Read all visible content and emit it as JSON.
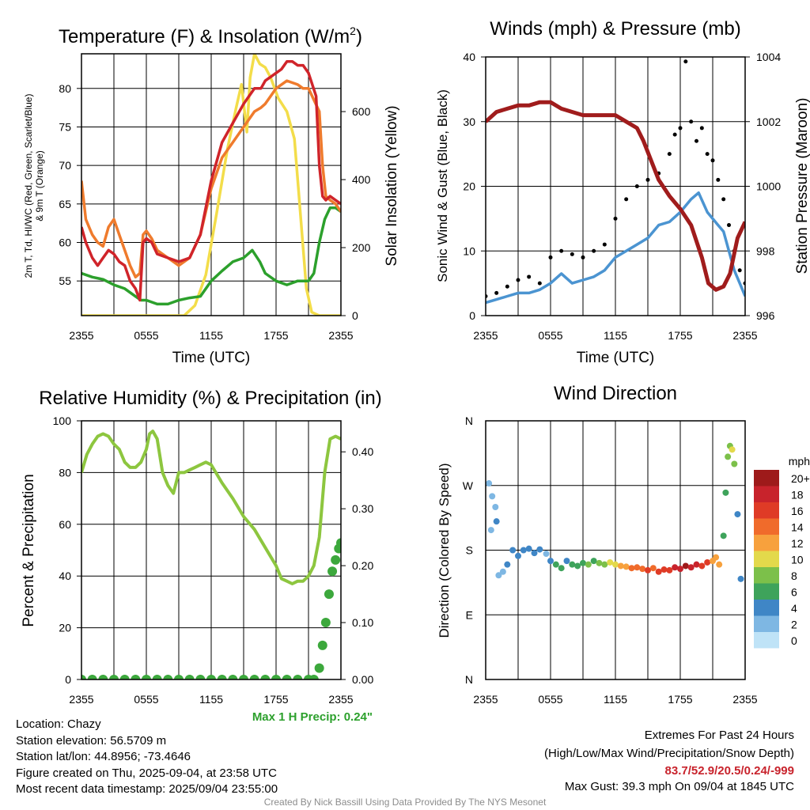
{
  "chart_data": [
    {
      "type": "line",
      "title": "Temperature (F) & Insolation (W/m2)",
      "title_parts": [
        "Temperature (F) & Insolation (W/m",
        "2",
        ")"
      ],
      "xlabel": "Time (UTC)",
      "ylabel_lines": [
        "2m T, Td, HI/WC (Red, Green, Scarlet/Blue)",
        "& 9m T (Orange)"
      ],
      "ylabel_right": "Solar Insolation (Yellow)",
      "x_ticks": [
        "2355",
        "0555",
        "1155",
        "1755",
        "2355"
      ],
      "y_ticks": [
        55,
        60,
        65,
        70,
        75,
        80
      ],
      "ylim": [
        50.5,
        84.5
      ],
      "y2_ticks": [
        0,
        200,
        400,
        600
      ],
      "y2lim": [
        0,
        770
      ],
      "xlim": [
        0,
        24
      ],
      "grid": true,
      "series": [
        {
          "color": "#f3dd4a",
          "axis": "right",
          "x": [
            0,
            9.5,
            10.5,
            11.5,
            12.5,
            13.5,
            14.3,
            14.8,
            15.3,
            15.6,
            16.0,
            16.5,
            17.0,
            17.5,
            18.2,
            19.0,
            19.7,
            20.1,
            20.4,
            20.8,
            21.3,
            22,
            24
          ],
          "y": [
            0,
            0,
            30,
            120,
            300,
            490,
            610,
            680,
            540,
            700,
            770,
            740,
            730,
            700,
            640,
            600,
            520,
            360,
            240,
            80,
            10,
            0,
            0
          ]
        },
        {
          "color": "#2ca02c",
          "x": [
            0,
            1,
            2,
            3,
            4,
            5,
            5.5,
            6,
            7,
            8,
            9,
            10,
            11,
            12,
            13,
            14,
            15,
            15.8,
            16.5,
            17,
            18,
            19,
            20,
            21,
            21.5,
            22,
            22.5,
            23,
            23.5,
            24
          ],
          "y": [
            56,
            55.5,
            55.2,
            54.5,
            54,
            53,
            52.5,
            52.5,
            52,
            52,
            52.5,
            52.8,
            53,
            55,
            56.3,
            57.5,
            58,
            59,
            57.5,
            56,
            55,
            54.5,
            55,
            55,
            56,
            60,
            63,
            64.5,
            64.5,
            64
          ]
        },
        {
          "color": "#ef7b2d",
          "x": [
            0,
            0.4,
            1,
            1.5,
            2,
            2.5,
            3,
            3.5,
            4,
            4.5,
            5,
            5.4,
            5.7,
            6.0,
            6.5,
            7,
            8,
            9,
            10,
            11,
            12,
            13,
            14,
            15,
            16,
            16.6,
            17,
            17.5,
            18,
            19,
            20,
            20.5,
            21,
            22,
            22.3,
            22.6,
            23,
            23.5,
            24
          ],
          "y": [
            68,
            63,
            61,
            60,
            59.5,
            62,
            63,
            61,
            59,
            57,
            55.5,
            56,
            61,
            61.5,
            60.5,
            59,
            58,
            57,
            58,
            61,
            67,
            71,
            73,
            75,
            77,
            77.5,
            78,
            79,
            80,
            81,
            80.5,
            80,
            80,
            77,
            70,
            66,
            65.5,
            65,
            64
          ]
        },
        {
          "color": "#d0242a",
          "x": [
            0,
            0.4,
            1,
            1.5,
            2,
            2.5,
            3,
            3.5,
            4,
            4.5,
            5,
            5.4,
            5.7,
            6.0,
            6.5,
            7,
            8,
            9,
            10,
            11,
            12,
            13,
            14,
            15,
            16,
            16.6,
            17,
            17.5,
            18,
            18.5,
            19,
            19.5,
            20,
            20.5,
            21,
            21.7,
            22,
            22.3,
            22.6,
            23,
            23.5,
            24
          ],
          "y": [
            62,
            60,
            58,
            57,
            58,
            59,
            58.5,
            57.5,
            57,
            55,
            54,
            52.5,
            60,
            60.5,
            60,
            58.5,
            58,
            57.5,
            58,
            61,
            68,
            73,
            75.5,
            78,
            80,
            80,
            81,
            81.5,
            82,
            82.5,
            83.5,
            83.5,
            83,
            83,
            82,
            79,
            70,
            66,
            65.5,
            66,
            65.5,
            65
          ]
        }
      ]
    },
    {
      "type": "line",
      "title": "Winds (mph) & Pressure (mb)",
      "xlabel": "Time (UTC)",
      "ylabel": "Sonic Wind & Gust (Blue, Black)",
      "ylabel_right": "Station Pressure (Maroon)",
      "x_ticks": [
        "2355",
        "0555",
        "1155",
        "1755",
        "2355"
      ],
      "y_ticks": [
        0,
        10,
        20,
        30,
        40
      ],
      "ylim": [
        0,
        40
      ],
      "y2_ticks": [
        996,
        998,
        1000,
        1002,
        1004
      ],
      "y2lim": [
        996,
        1004
      ],
      "xlim": [
        0,
        24
      ],
      "grid": true,
      "series": [
        {
          "name": "wind",
          "color": "#4b94d1",
          "x": [
            0,
            1,
            2,
            3,
            4,
            5,
            6,
            7,
            8,
            9,
            10,
            11,
            12,
            13,
            14,
            15,
            16,
            17,
            18,
            19,
            19.7,
            20.5,
            21.5,
            22,
            22.5,
            23,
            23.5,
            24
          ],
          "y": [
            2,
            2.5,
            3,
            3.5,
            3.5,
            4,
            5,
            6.5,
            5,
            5.5,
            6,
            7,
            9,
            10,
            11,
            12,
            14,
            14.5,
            16,
            18,
            19,
            16,
            14,
            13,
            10,
            7,
            5,
            3
          ]
        },
        {
          "name": "gust",
          "color": "#000000",
          "markers": "dots",
          "x": [
            0,
            1,
            2,
            3,
            4,
            5,
            6,
            7,
            8,
            9,
            10,
            11,
            12,
            13,
            14,
            15,
            16,
            17,
            17.5,
            18,
            18.5,
            19,
            19.5,
            20,
            20.5,
            21,
            21.5,
            22,
            22.5,
            23,
            23.5,
            24
          ],
          "y": [
            3,
            3.5,
            4.5,
            5.5,
            6,
            5,
            9,
            10,
            9.5,
            9,
            10,
            11,
            15,
            18,
            20,
            21,
            22,
            25,
            28,
            29,
            39.3,
            30,
            27,
            29,
            25,
            24,
            21,
            18,
            14,
            10,
            7,
            5
          ]
        },
        {
          "name": "pressure",
          "color": "#a01c1c",
          "axis": "right",
          "x": [
            0,
            1,
            2,
            3,
            4,
            5,
            6,
            7,
            8,
            9,
            10,
            11,
            12,
            13,
            14,
            14.6,
            15.3,
            16,
            17,
            18,
            19,
            20,
            20.6,
            21.3,
            22,
            22.6,
            23.3,
            24
          ],
          "y": [
            1002.0,
            1002.3,
            1002.4,
            1002.5,
            1002.5,
            1002.6,
            1002.6,
            1002.4,
            1002.3,
            1002.2,
            1002.2,
            1002.2,
            1002.2,
            1002.0,
            1001.8,
            1001.4,
            1000.8,
            1000.2,
            999.7,
            999.3,
            998.8,
            997.8,
            997.0,
            996.8,
            996.9,
            997.3,
            998.4,
            998.9
          ]
        }
      ]
    },
    {
      "type": "line",
      "title": "Relative Humidity (%) & Precipitation (in)",
      "xlabel": "",
      "ylabel": "Percent & Precipitation",
      "x_ticks": [
        "2355",
        "0555",
        "1155",
        "1755",
        "2355"
      ],
      "y_ticks": [
        0,
        20,
        40,
        60,
        80,
        100
      ],
      "ylim": [
        0,
        100
      ],
      "y2_ticks": [
        "0.00",
        "0.10",
        "0.20",
        "0.30",
        "0.40"
      ],
      "y2lim": [
        0,
        0.4545
      ],
      "xlim": [
        0,
        24
      ],
      "grid": true,
      "annotation": "Max 1 H Precip: 0.24\"",
      "series": [
        {
          "name": "rh",
          "color": "#8dc63f",
          "x": [
            0,
            0.5,
            1,
            1.5,
            2,
            2.5,
            3,
            3.5,
            4,
            4.5,
            5,
            5.5,
            6,
            6.3,
            6.6,
            7,
            7.5,
            8,
            8.5,
            9,
            9.5,
            10,
            10.5,
            11,
            11.5,
            12,
            13,
            14,
            15,
            16,
            17,
            18,
            18.5,
            19,
            19.5,
            20,
            20.5,
            21,
            21.5,
            22,
            22.5,
            23,
            23.5,
            24
          ],
          "y": [
            80,
            87,
            91,
            94,
            95,
            94,
            91,
            89,
            84,
            82,
            82,
            84,
            89,
            95,
            96,
            93,
            80,
            75,
            72,
            80,
            80,
            81,
            82,
            83,
            84,
            83,
            76,
            70,
            63,
            58,
            51,
            44,
            39,
            38,
            37,
            38,
            38,
            40,
            44,
            55,
            80,
            93,
            94,
            93
          ]
        },
        {
          "name": "precip",
          "color": "#3ca83c",
          "markers": "dots",
          "axis": "right",
          "x": [
            0,
            1,
            2,
            3,
            4,
            5,
            6,
            7,
            8,
            9,
            10,
            11,
            12,
            13,
            14,
            15,
            16,
            17,
            18,
            19,
            20,
            21,
            21.5,
            22,
            22.3,
            22.6,
            22.9,
            23.2,
            23.5,
            23.8,
            24
          ],
          "y": [
            0,
            0,
            0,
            0,
            0,
            0,
            0,
            0,
            0,
            0,
            0,
            0,
            0,
            0,
            0,
            0,
            0,
            0,
            0,
            0,
            0,
            0,
            0.0,
            0.02,
            0.06,
            0.1,
            0.15,
            0.19,
            0.21,
            0.23,
            0.24
          ]
        }
      ]
    },
    {
      "type": "scatter",
      "title": "Wind Direction",
      "ylabel": "Direction (Colored By Speed)",
      "x_ticks": [
        "2355",
        "0555",
        "1155",
        "1755",
        "2355"
      ],
      "y_ticks": [
        "N",
        "E",
        "S",
        "W",
        "N"
      ],
      "ylim": [
        0,
        360
      ],
      "xlim": [
        0,
        24
      ],
      "grid": true,
      "legend_title": "mph",
      "legend_labels": [
        "20+",
        "18",
        "16",
        "14",
        "12",
        "10",
        "8",
        "6",
        "4",
        "2",
        "0"
      ],
      "legend_colors": [
        "#9e1a1a",
        "#c8232c",
        "#df3b26",
        "#f06b2b",
        "#f7a13d",
        "#e3d94b",
        "#7cc04a",
        "#3ea35b",
        "#3f86c6",
        "#7eb7e3",
        "#bfe3f7"
      ],
      "legend_placement": "right",
      "points": [
        {
          "x": 0.3,
          "y": 273,
          "s": 1
        },
        {
          "x": 0.6,
          "y": 255,
          "s": 2
        },
        {
          "x": 0.9,
          "y": 240,
          "s": 2
        },
        {
          "x": 1.0,
          "y": 220,
          "s": 3
        },
        {
          "x": 0.5,
          "y": 208,
          "s": 1
        },
        {
          "x": 1.2,
          "y": 145,
          "s": 1
        },
        {
          "x": 1.6,
          "y": 150,
          "s": 2
        },
        {
          "x": 2.0,
          "y": 160,
          "s": 3
        },
        {
          "x": 2.5,
          "y": 180,
          "s": 3
        },
        {
          "x": 3.0,
          "y": 172,
          "s": 4
        },
        {
          "x": 3.5,
          "y": 180,
          "s": 3
        },
        {
          "x": 4.0,
          "y": 182,
          "s": 4
        },
        {
          "x": 4.5,
          "y": 176,
          "s": 4
        },
        {
          "x": 5.0,
          "y": 181,
          "s": 3
        },
        {
          "x": 5.6,
          "y": 175,
          "s": 2
        },
        {
          "x": 6.0,
          "y": 165,
          "s": 4
        },
        {
          "x": 6.5,
          "y": 160,
          "s": 6
        },
        {
          "x": 7.0,
          "y": 155,
          "s": 5
        },
        {
          "x": 7.5,
          "y": 165,
          "s": 4
        },
        {
          "x": 8.0,
          "y": 160,
          "s": 5
        },
        {
          "x": 8.5,
          "y": 158,
          "s": 6
        },
        {
          "x": 9.0,
          "y": 162,
          "s": 5
        },
        {
          "x": 9.5,
          "y": 160,
          "s": 7
        },
        {
          "x": 10.0,
          "y": 165,
          "s": 6
        },
        {
          "x": 10.5,
          "y": 162,
          "s": 8
        },
        {
          "x": 11.0,
          "y": 160,
          "s": 7
        },
        {
          "x": 11.5,
          "y": 163,
          "s": 9
        },
        {
          "x": 12.0,
          "y": 160,
          "s": 10
        },
        {
          "x": 12.5,
          "y": 158,
          "s": 11
        },
        {
          "x": 13.0,
          "y": 157,
          "s": 12
        },
        {
          "x": 13.5,
          "y": 155,
          "s": 13
        },
        {
          "x": 14.0,
          "y": 156,
          "s": 14
        },
        {
          "x": 14.5,
          "y": 154,
          "s": 13
        },
        {
          "x": 15.0,
          "y": 152,
          "s": 15
        },
        {
          "x": 15.5,
          "y": 155,
          "s": 14
        },
        {
          "x": 16.0,
          "y": 150,
          "s": 16
        },
        {
          "x": 16.5,
          "y": 153,
          "s": 15
        },
        {
          "x": 17.0,
          "y": 152,
          "s": 16
        },
        {
          "x": 17.5,
          "y": 156,
          "s": 17
        },
        {
          "x": 18.0,
          "y": 154,
          "s": 18
        },
        {
          "x": 18.5,
          "y": 158,
          "s": 19
        },
        {
          "x": 19.0,
          "y": 156,
          "s": 18
        },
        {
          "x": 19.5,
          "y": 160,
          "s": 17
        },
        {
          "x": 20.0,
          "y": 158,
          "s": 16
        },
        {
          "x": 20.5,
          "y": 163,
          "s": 15
        },
        {
          "x": 21.0,
          "y": 165,
          "s": 12
        },
        {
          "x": 21.3,
          "y": 170,
          "s": 11
        },
        {
          "x": 21.6,
          "y": 160,
          "s": 12
        },
        {
          "x": 22.0,
          "y": 200,
          "s": 6
        },
        {
          "x": 22.2,
          "y": 260,
          "s": 5
        },
        {
          "x": 22.4,
          "y": 310,
          "s": 7
        },
        {
          "x": 22.6,
          "y": 325,
          "s": 8
        },
        {
          "x": 22.8,
          "y": 320,
          "s": 10
        },
        {
          "x": 23.0,
          "y": 300,
          "s": 7
        },
        {
          "x": 23.3,
          "y": 230,
          "s": 4
        },
        {
          "x": 23.6,
          "y": 140,
          "s": 3
        }
      ]
    }
  ],
  "info": {
    "location": "Location: Chazy",
    "elevation": "Station elevation: 56.5709 m",
    "latlon": "Station lat/lon: 44.8956; -73.4646",
    "created": "Figure created on Thu, 2025-09-04, at 23:58 UTC",
    "recent": "Most recent data timestamp: 2025/09/04 23:55:00"
  },
  "extremes": {
    "heading": "Extremes For Past 24 Hours",
    "subheading": "(High/Low/Max Wind/Precipitation/Snow Depth)",
    "values": "83.7/52.9/20.5/0.24/-999",
    "values_color": "#c8232c",
    "gust": "Max Gust: 39.3 mph On 09/04 at 1845 UTC"
  },
  "credit": "Created By Nick Bassill Using Data Provided By The NYS Mesonet",
  "annotation_color": "#2ca02c"
}
